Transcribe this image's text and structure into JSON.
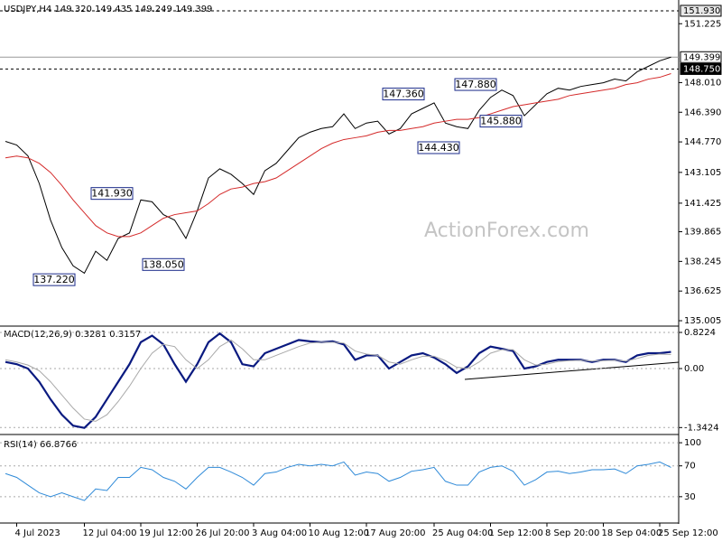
{
  "chart_data": [
    {
      "type": "line",
      "title": "USDJPY,H4  149.320 149.435 149.249 149.399",
      "watermark": "ActionForex.com",
      "categories": [
        null,
        "4 Jul 2023",
        null,
        null,
        null,
        null,
        null,
        "12 Jul 04:00",
        null,
        null,
        null,
        null,
        "19 Jul 12:00",
        null,
        null,
        null,
        null,
        "26 Jul 20:00",
        null,
        null,
        null,
        null,
        "3 Aug 04:00",
        null,
        null,
        null,
        null,
        "10 Aug 12:00",
        null,
        null,
        null,
        null,
        "17 Aug 20:00",
        null,
        null,
        null,
        null,
        null,
        "25 Aug 04:00",
        null,
        null,
        null,
        null,
        "1 Sep 12:00",
        null,
        null,
        null,
        null,
        "8 Sep 20:00",
        null,
        null,
        null,
        null,
        "18 Sep 04:00",
        null,
        null,
        null,
        null,
        "25 Sep 12:00",
        null
      ],
      "series": [
        {
          "color": "#000000",
          "values": [
            144.8,
            144.6,
            144.0,
            142.5,
            140.5,
            139.0,
            138.0,
            137.6,
            138.8,
            138.3,
            139.5,
            139.8,
            141.6,
            141.5,
            140.8,
            140.5,
            139.5,
            141.0,
            142.8,
            143.3,
            143.0,
            142.5,
            141.9,
            143.2,
            143.6,
            144.3,
            145.0,
            145.3,
            145.5,
            145.6,
            146.3,
            145.5,
            145.8,
            145.9,
            145.2,
            145.5,
            146.3,
            146.6,
            146.9,
            145.8,
            145.6,
            145.5,
            146.5,
            147.2,
            147.6,
            147.3,
            146.2,
            146.8,
            147.4,
            147.7,
            147.6,
            147.8,
            147.9,
            148.0,
            148.2,
            148.1,
            148.6,
            148.9,
            149.2,
            149.4
          ]
        },
        {
          "color": "#d42a2a",
          "values": [
            143.9,
            144.0,
            143.9,
            143.6,
            143.1,
            142.4,
            141.6,
            140.9,
            140.2,
            139.8,
            139.6,
            139.6,
            139.8,
            140.2,
            140.6,
            140.8,
            140.9,
            141.0,
            141.4,
            141.9,
            142.2,
            142.3,
            142.5,
            142.6,
            142.8,
            143.2,
            143.6,
            144.0,
            144.4,
            144.7,
            144.9,
            145.0,
            145.1,
            145.3,
            145.4,
            145.4,
            145.5,
            145.6,
            145.8,
            145.9,
            146.0,
            146.0,
            146.1,
            146.3,
            146.5,
            146.7,
            146.8,
            146.9,
            147.0,
            147.1,
            147.3,
            147.4,
            147.5,
            147.6,
            147.7,
            147.9,
            148.0,
            148.2,
            148.3,
            148.5
          ]
        }
      ],
      "ylim": [
        134.76,
        152.52
      ],
      "yticks": [
        135.005,
        136.625,
        138.245,
        139.865,
        141.425,
        143.105,
        {
          "value": 144.77,
          "label": "144.770"
        },
        {
          "value": 146.39,
          "label": "146.390"
        },
        {
          "value": 148.01,
          "label": "148.010"
        },
        151.225
      ],
      "levels": [
        {
          "value": 151.93,
          "label": "151.930",
          "line": "dashed"
        },
        {
          "value": 149.399,
          "label": "149.399",
          "line": "solid"
        },
        {
          "value": 148.75,
          "label": "148.750",
          "line": "dashed"
        }
      ],
      "annotations": [
        {
          "value": 137.22,
          "label": "137.220"
        },
        {
          "value": 141.93,
          "label": "141.930"
        },
        {
          "value": 138.05,
          "label": "138.050"
        },
        {
          "value": 147.36,
          "label": "147.360"
        },
        {
          "value": 144.43,
          "label": "144.430"
        },
        {
          "value": 147.88,
          "label": "147.880"
        },
        {
          "value": 145.88,
          "label": "145.880"
        }
      ],
      "grid": false
    },
    {
      "type": "line",
      "title": "MACD(12,26,9) 0.3281 0.3157",
      "series": [
        {
          "color": "#0a1a80",
          "values": [
            0.15,
            0.1,
            0.0,
            -0.3,
            -0.7,
            -1.05,
            -1.3,
            -1.35,
            -1.1,
            -0.7,
            -0.3,
            0.1,
            0.6,
            0.75,
            0.55,
            0.1,
            -0.3,
            0.1,
            0.6,
            0.8,
            0.6,
            0.1,
            0.05,
            0.35,
            0.45,
            0.55,
            0.65,
            0.62,
            0.6,
            0.62,
            0.55,
            0.2,
            0.3,
            0.3,
            0.0,
            0.15,
            0.3,
            0.35,
            0.25,
            0.1,
            -0.1,
            0.05,
            0.35,
            0.5,
            0.45,
            0.4,
            0.0,
            0.05,
            0.15,
            0.2,
            0.2,
            0.2,
            0.15,
            0.2,
            0.2,
            0.15,
            0.3,
            0.35,
            0.35,
            0.38
          ]
        },
        {
          "color": "#a8a8a8",
          "values": [
            0.2,
            0.15,
            0.08,
            -0.05,
            -0.3,
            -0.6,
            -0.9,
            -1.15,
            -1.2,
            -1.05,
            -0.75,
            -0.4,
            0.0,
            0.35,
            0.55,
            0.5,
            0.2,
            0.0,
            0.2,
            0.5,
            0.65,
            0.45,
            0.2,
            0.2,
            0.3,
            0.4,
            0.5,
            0.58,
            0.6,
            0.6,
            0.58,
            0.4,
            0.33,
            0.3,
            0.15,
            0.1,
            0.2,
            0.28,
            0.28,
            0.18,
            0.03,
            0.0,
            0.15,
            0.35,
            0.43,
            0.43,
            0.2,
            0.08,
            0.1,
            0.16,
            0.18,
            0.19,
            0.17,
            0.18,
            0.19,
            0.17,
            0.23,
            0.3,
            0.33,
            0.32
          ]
        }
      ],
      "ylim": [
        -1.48,
        0.946
      ],
      "yticks": [
        0.8224,
        {
          "value": 0,
          "label": "0.00"
        },
        -1.3424
      ],
      "grid": true
    },
    {
      "type": "line",
      "title": "RSI(14) 66.8766",
      "series": [
        {
          "color": "#2f8ad8",
          "values": [
            60,
            55,
            45,
            35,
            30,
            35,
            30,
            25,
            40,
            38,
            55,
            55,
            68,
            65,
            55,
            50,
            40,
            55,
            68,
            68,
            62,
            55,
            45,
            60,
            62,
            68,
            72,
            70,
            72,
            70,
            75,
            58,
            62,
            60,
            50,
            55,
            63,
            65,
            68,
            50,
            45,
            45,
            62,
            68,
            70,
            63,
            45,
            52,
            62,
            63,
            60,
            62,
            65,
            65,
            66,
            60,
            70,
            72,
            75,
            68
          ]
        }
      ],
      "ylim": [
        -3,
        109.5
      ],
      "yticks": [
        100,
        70,
        30
      ],
      "grid": true
    }
  ]
}
